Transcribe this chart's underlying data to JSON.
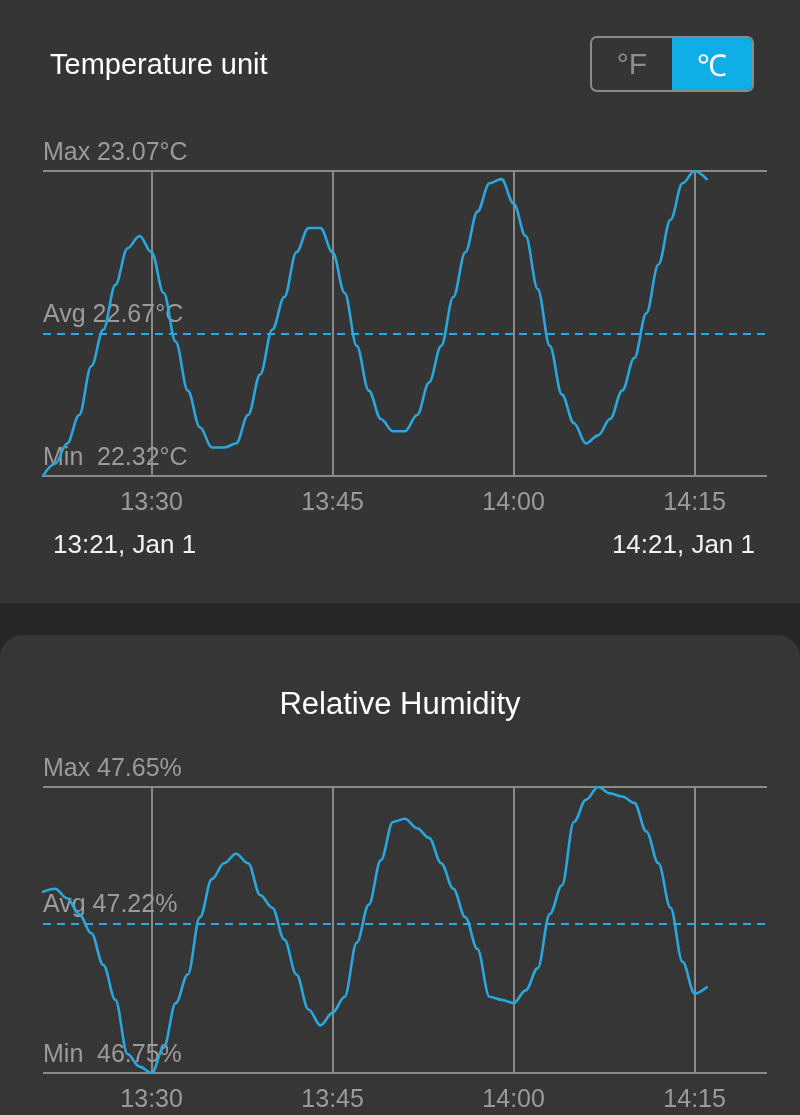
{
  "chart_data": [
    {
      "type": "other",
      "title": "Temperature unit",
      "annotations": [
        "°F",
        "℃"
      ]
    },
    {
      "type": "line",
      "x": [
        13.35,
        13.3667,
        13.3833,
        13.4,
        13.4167,
        13.4333,
        13.45,
        13.4667,
        13.4833,
        13.5,
        13.5167,
        13.5333,
        13.55,
        13.5667,
        13.5833,
        13.6,
        13.6167,
        13.6333,
        13.65,
        13.6667,
        13.6833,
        13.7,
        13.7167,
        13.7333,
        13.75,
        13.7667,
        13.7833,
        13.8,
        13.8167,
        13.8333,
        13.85,
        13.8667,
        13.8833,
        13.9,
        13.9167,
        13.9333,
        13.95,
        13.9667,
        13.9833,
        14.0,
        14.0167,
        14.0333,
        14.05,
        14.0667,
        14.0833,
        14.1,
        14.1167,
        14.1333,
        14.15,
        14.1667,
        14.1833,
        14.2,
        14.2167,
        14.2333,
        14.25,
        14.2667
      ],
      "series": [
        {
          "color": "#29a8df",
          "values": [
            22.32,
            22.35,
            22.4,
            22.47,
            22.59,
            22.68,
            22.79,
            22.88,
            22.91,
            22.87,
            22.77,
            22.65,
            22.53,
            22.44,
            22.39,
            22.39,
            22.4,
            22.47,
            22.57,
            22.68,
            22.76,
            22.87,
            22.93,
            22.93,
            22.87,
            22.77,
            22.64,
            22.53,
            22.46,
            22.43,
            22.43,
            22.47,
            22.55,
            22.64,
            22.76,
            22.87,
            22.97,
            23.04,
            23.05,
            22.99,
            22.91,
            22.78,
            22.64,
            22.52,
            22.45,
            22.4,
            22.42,
            22.46,
            22.53,
            22.61,
            22.72,
            22.84,
            22.95,
            23.04,
            23.07,
            23.05
          ]
        }
      ],
      "xlim": [
        13.35,
        14.35
      ],
      "xticks": [
        {
          "value": 13.5,
          "label": "13:30"
        },
        {
          "value": 13.75,
          "label": "13:45"
        },
        {
          "value": 14,
          "label": "14:00"
        },
        {
          "value": 14.25,
          "label": "14:15"
        }
      ],
      "ylim": [
        22.32,
        23.07
      ],
      "yticks": [
        {
          "value": 22.32,
          "label": "22.32°C"
        },
        {
          "value": 23.07,
          "label": "23.07°C"
        }
      ],
      "ref_lines": [
        {
          "axis": "y",
          "value": 22.67,
          "label": "Avg 22.67°C",
          "color": "#26acdf",
          "line_style": "dashed"
        }
      ],
      "grid": true,
      "annotations": [
        "13:21, Jan 1",
        "14:21, Jan 1",
        "Min",
        "Max"
      ]
    },
    {
      "type": "line",
      "title": "Relative Humidity",
      "x": [
        13.35,
        13.3667,
        13.3833,
        13.4,
        13.4167,
        13.4333,
        13.45,
        13.4667,
        13.4833,
        13.5,
        13.5167,
        13.5333,
        13.55,
        13.5667,
        13.5833,
        13.6,
        13.6167,
        13.6333,
        13.65,
        13.6667,
        13.6833,
        13.7,
        13.7167,
        13.7333,
        13.75,
        13.7667,
        13.7833,
        13.8,
        13.8167,
        13.8333,
        13.85,
        13.8667,
        13.8833,
        13.9,
        13.9167,
        13.9333,
        13.95,
        13.9667,
        13.9833,
        14.0,
        14.0167,
        14.0333,
        14.05,
        14.0667,
        14.0833,
        14.1,
        14.1167,
        14.1333,
        14.15,
        14.1667,
        14.1833,
        14.2,
        14.2167,
        14.2333,
        14.25,
        14.2667
      ],
      "series": [
        {
          "color": "#29a8df",
          "values": [
            47.32,
            47.33,
            47.3,
            47.25,
            47.19,
            47.09,
            46.98,
            46.81,
            46.77,
            46.75,
            46.83,
            46.97,
            47.06,
            47.24,
            47.36,
            47.41,
            47.44,
            47.41,
            47.31,
            47.27,
            47.17,
            47.06,
            46.95,
            46.9,
            46.94,
            46.99,
            47.16,
            47.28,
            47.42,
            47.54,
            47.55,
            47.52,
            47.49,
            47.41,
            47.33,
            47.24,
            47.14,
            46.99,
            46.98,
            46.97,
            47.01,
            47.08,
            47.25,
            47.34,
            47.54,
            47.61,
            47.65,
            47.63,
            47.62,
            47.6,
            47.51,
            47.41,
            47.27,
            47.1,
            47.0,
            47.02
          ]
        }
      ],
      "xlim": [
        13.35,
        14.35
      ],
      "xticks": [
        {
          "value": 13.5,
          "label": "13:30"
        },
        {
          "value": 13.75,
          "label": "13:45"
        },
        {
          "value": 14,
          "label": "14:00"
        },
        {
          "value": 14.25,
          "label": "14:15"
        }
      ],
      "ylim": [
        46.75,
        47.65
      ],
      "yticks": [
        {
          "value": 46.75,
          "label": "46.75%"
        },
        {
          "value": 47.65,
          "label": "47.65%"
        }
      ],
      "ref_lines": [
        {
          "axis": "y",
          "value": 47.22,
          "label": "Avg 47.22%",
          "color": "#26acdf",
          "line_style": "dashed"
        }
      ],
      "grid": true,
      "annotations": [
        "Min",
        "Max"
      ]
    }
  ]
}
